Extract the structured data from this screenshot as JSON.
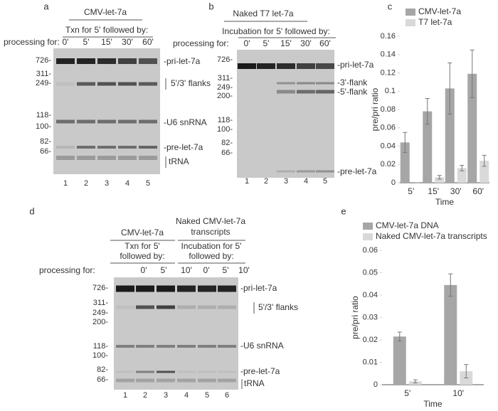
{
  "panels": {
    "a": {
      "label": "a",
      "header": "CMV-let-7a",
      "subheader": "Txn for 5' followed by:",
      "processing": "processing for:",
      "lanes": [
        "0'",
        "5'",
        "15'",
        "30'",
        "60'"
      ],
      "markers": [
        "726-",
        "311-",
        "249-",
        "118-",
        "100-",
        "82-",
        "66-"
      ],
      "bands": [
        "-pri-let-7a",
        "5'/3' flanks",
        "-U6 snRNA",
        "-pre-let-7a",
        "tRNA"
      ],
      "lane_numbers": [
        "1",
        "2",
        "3",
        "4",
        "5"
      ]
    },
    "b": {
      "label": "b",
      "header": "Naked T7 let-7a",
      "subheader": "Incubation for 5' followed by:",
      "processing": "processing for:",
      "lanes": [
        "0'",
        "5'",
        "15'",
        "30'",
        "60'"
      ],
      "markers": [
        "726-",
        "311-",
        "249-",
        "200-",
        "118-",
        "100-",
        "82-",
        "66-"
      ],
      "bands": [
        "-pri-let-7a",
        "-3'-flank",
        "-5'-flank",
        "-pre-let-7a"
      ],
      "lane_numbers": [
        "1",
        "2",
        "3",
        "4",
        "5"
      ]
    },
    "d": {
      "label": "d",
      "header_left": "CMV-let-7a",
      "sub_left": [
        "Txn for 5'",
        "followed by:"
      ],
      "header_right": [
        "Naked CMV-let-7a",
        "transcripts"
      ],
      "sub_right": [
        "Incubation for 5'",
        "followed by:"
      ],
      "processing": "processing for:",
      "lanes": [
        "0'",
        "5'",
        "10'",
        "0'",
        "5'",
        "10'"
      ],
      "markers": [
        "726-",
        "311-",
        "249-",
        "200-",
        "118-",
        "100-",
        "82-",
        "66-"
      ],
      "bands": [
        "-pri-let-7a",
        "5'/3' flanks",
        "-U6 snRNA",
        "-pre-let-7a",
        "tRNA"
      ],
      "lane_numbers": [
        "1",
        "2",
        "3",
        "4",
        "5",
        "6"
      ]
    }
  },
  "chart_data": [
    {
      "type": "bar",
      "label": "c",
      "y_label": "pre/pri ratio",
      "x_label": "Time",
      "grid": false,
      "categories": [
        "5'",
        "15'",
        "30'",
        "60'"
      ],
      "series": [
        {
          "name": "CMV-let-7a",
          "color": "#a6a6a6",
          "values": [
            0.044,
            0.078,
            0.103,
            0.119
          ],
          "errors": [
            0.011,
            0.014,
            0.028,
            0.026
          ]
        },
        {
          "name": "T7 let-7a",
          "color": "#d9d9d9",
          "values": [
            0,
            0.006,
            0.016,
            0.024
          ],
          "errors": [
            0,
            0.002,
            0.003,
            0.006
          ]
        }
      ],
      "ylim": [
        0,
        0.16
      ],
      "yticks": [
        0,
        0.02,
        0.04,
        0.06,
        0.08,
        0.1,
        0.12,
        0.14,
        0.16
      ]
    },
    {
      "type": "bar",
      "label": "e",
      "y_label": "pre/pri ratio",
      "x_label": "Time",
      "grid": false,
      "categories": [
        "5'",
        "10'"
      ],
      "series": [
        {
          "name": "CMV-let-7a DNA",
          "color": "#a6a6a6",
          "values": [
            0.0215,
            0.0445
          ],
          "errors": [
            0.002,
            0.005
          ]
        },
        {
          "name": "Naked CMV-let-7a transcripts",
          "color": "#d9d9d9",
          "values": [
            0.0015,
            0.006
          ],
          "errors": [
            0.0007,
            0.003
          ]
        }
      ],
      "ylim": [
        0,
        0.06
      ],
      "yticks": [
        0,
        0.01,
        0.02,
        0.03,
        0.04,
        0.05,
        0.06
      ]
    }
  ]
}
